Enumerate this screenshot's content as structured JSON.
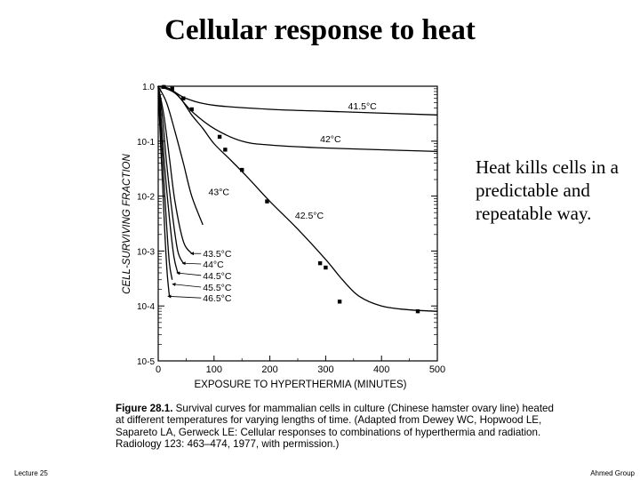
{
  "slide": {
    "title": "Cellular response to heat",
    "side_text": "Heat kills cells in a predictable and repeatable way.",
    "caption_label": "Figure 28.1.",
    "caption_body": "Survival curves for mammalian cells in culture (Chinese hamster ovary line) heated at different temperatures for varying lengths of time. (Adapted from Dewey WC, Hopwood LE, Sapareto LA, Gerweck LE: Cellular responses to combinations of hyperthermia and radiation. Radiology 123: 463–474, 1977, with permission.)",
    "footer_left": "Lecture 25",
    "footer_right": "Ahmed Group"
  },
  "chart_data": {
    "type": "line",
    "xlabel": "EXPOSURE TO HYPERTHERMIA (MINUTES)",
    "ylabel": "CELL-SURVIVING FRACTION",
    "xlim": [
      0,
      500
    ],
    "ylim": [
      1e-05,
      1
    ],
    "yscale": "log",
    "x_ticks": [
      0,
      100,
      200,
      300,
      400,
      500
    ],
    "y_ticks": [
      {
        "value": 1,
        "label": "1.0"
      },
      {
        "value": 0.1,
        "label": "10-1"
      },
      {
        "value": 0.01,
        "label": "10-2"
      },
      {
        "value": 0.001,
        "label": "10-3"
      },
      {
        "value": 0.0001,
        "label": "10-4"
      },
      {
        "value": 1e-05,
        "label": "10-5"
      }
    ],
    "series": [
      {
        "name": "41.5°C",
        "x": [
          0,
          20,
          50,
          100,
          200,
          300,
          500
        ],
        "y": [
          1,
          0.9,
          0.6,
          0.45,
          0.38,
          0.35,
          0.3
        ]
      },
      {
        "name": "42°C",
        "x": [
          0,
          30,
          60,
          100,
          150,
          200,
          300,
          500
        ],
        "y": [
          1,
          0.75,
          0.35,
          0.17,
          0.1,
          0.085,
          0.075,
          0.065
        ]
      },
      {
        "name": "42.5°C",
        "x": [
          0,
          20,
          40,
          60,
          80,
          100,
          130,
          160,
          200,
          250,
          300,
          330,
          360,
          400,
          450,
          500
        ],
        "y": [
          1,
          0.9,
          0.6,
          0.3,
          0.17,
          0.09,
          0.045,
          0.022,
          0.008,
          0.0025,
          0.0007,
          0.0003,
          0.00015,
          0.0001,
          8.5e-05,
          8e-05
        ]
      },
      {
        "name": "43°C",
        "x": [
          0,
          15,
          30,
          45,
          60,
          80
        ],
        "y": [
          1,
          0.5,
          0.15,
          0.04,
          0.01,
          0.003
        ]
      },
      {
        "name": "43.5°C",
        "x": [
          0,
          10,
          20,
          30,
          45,
          60
        ],
        "y": [
          1,
          0.3,
          0.05,
          0.008,
          0.0015,
          0.0009
        ]
      },
      {
        "name": "44°C",
        "x": [
          0,
          8,
          15,
          25,
          35,
          45
        ],
        "y": [
          1,
          0.25,
          0.04,
          0.005,
          0.001,
          0.0006
        ]
      },
      {
        "name": "44.5°C",
        "x": [
          0,
          6,
          12,
          20,
          28,
          35
        ],
        "y": [
          1,
          0.2,
          0.03,
          0.004,
          0.0008,
          0.0004
        ]
      },
      {
        "name": "45.5°C",
        "x": [
          0,
          5,
          10,
          15,
          20,
          25
        ],
        "y": [
          1,
          0.15,
          0.02,
          0.003,
          0.0006,
          0.0003
        ]
      },
      {
        "name": "46.5°C",
        "x": [
          0,
          4,
          8,
          12,
          16,
          20
        ],
        "y": [
          1,
          0.1,
          0.015,
          0.002,
          0.0004,
          0.00015
        ]
      }
    ],
    "points": [
      {
        "x": 10,
        "y": 0.97
      },
      {
        "x": 25,
        "y": 0.9
      },
      {
        "x": 45,
        "y": 0.6
      },
      {
        "x": 60,
        "y": 0.38
      },
      {
        "x": 110,
        "y": 0.12
      },
      {
        "x": 120,
        "y": 0.07
      },
      {
        "x": 150,
        "y": 0.03
      },
      {
        "x": 195,
        "y": 0.008
      },
      {
        "x": 290,
        "y": 0.0006
      },
      {
        "x": 300,
        "y": 0.0005
      },
      {
        "x": 325,
        "y": 0.00012
      },
      {
        "x": 465,
        "y": 8e-05
      }
    ],
    "annotations": [
      {
        "series": "41.5°C",
        "text": "41.5°C",
        "x": 340,
        "y": 0.44,
        "anchor": "start"
      },
      {
        "series": "42°C",
        "text": "42°C",
        "x": 290,
        "y": 0.11,
        "anchor": "start"
      },
      {
        "series": "43°C",
        "text": "43°C",
        "x": 90,
        "y": 0.012,
        "anchor": "start"
      },
      {
        "series": "42.5°C",
        "text": "42.5°C",
        "x": 245,
        "y": 0.0045,
        "anchor": "start"
      },
      {
        "series": "43.5°C",
        "text": "43.5°C",
        "x": 80,
        "y": 0.0009,
        "anchor": "start",
        "arrow_to": [
          55,
          0.0009
        ]
      },
      {
        "series": "44°C",
        "text": "44°C",
        "x": 80,
        "y": 0.00058,
        "anchor": "start",
        "arrow_to": [
          40,
          0.0006
        ]
      },
      {
        "series": "44.5°C",
        "text": "44.5°C",
        "x": 80,
        "y": 0.00036,
        "anchor": "start",
        "arrow_to": [
          30,
          0.0004
        ]
      },
      {
        "series": "45.5°C",
        "text": "45.5°C",
        "x": 80,
        "y": 0.00022,
        "anchor": "start",
        "arrow_to": [
          22,
          0.00025
        ]
      },
      {
        "series": "46.5°C",
        "text": "46.5°C",
        "x": 80,
        "y": 0.00014,
        "anchor": "start",
        "arrow_to": [
          14,
          0.00015
        ]
      }
    ],
    "colors": {
      "line": "#000000",
      "background": "#ffffff"
    }
  }
}
